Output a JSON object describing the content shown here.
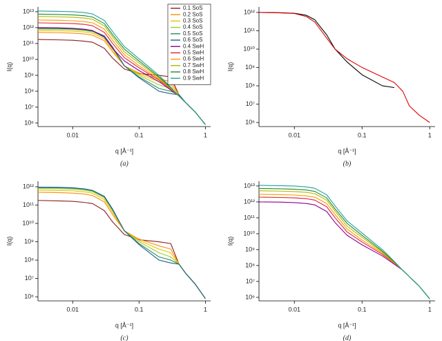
{
  "chart_data": [
    {
      "type": "line",
      "caption": "(a)",
      "xlabel": "q [Å⁻¹]",
      "ylabel": "I(q)",
      "xscale": "log",
      "yscale": "log",
      "xlim": [
        0.003,
        1.2
      ],
      "ylim": [
        600000,
        20000000000000
      ],
      "legend": "upper right",
      "xticks": [
        0.01,
        0.1,
        1
      ],
      "yticks": [
        {
          "value": 1000000,
          "label": "10⁶"
        },
        {
          "value": 10000000,
          "label": "10⁷"
        },
        {
          "value": 100000000,
          "label": "10⁸"
        },
        {
          "value": 1000000000,
          "label": "10⁹"
        },
        {
          "value": 10000000000,
          "label": "10¹⁰"
        },
        {
          "value": 100000000000,
          "label": "10¹¹"
        },
        {
          "value": 1000000000000,
          "label": "10¹²"
        },
        {
          "value": 10000000000000,
          "label": "10¹³"
        }
      ],
      "x": [
        0.003,
        0.006,
        0.01,
        0.015,
        0.02,
        0.03,
        0.04,
        0.06,
        0.1,
        0.2,
        0.3,
        0.4,
        0.5,
        0.7,
        1.0
      ],
      "series": [
        {
          "name": "0.1 SoS",
          "color": "#8b1a1a",
          "values": [
            180000000000.0,
            170000000000.0,
            160000000000.0,
            140000000000.0,
            120000000000.0,
            50000000000.0,
            12000000000.0,
            2500000000.0,
            1300000000.0,
            1000000000.0,
            800000000.0,
            60000000.0,
            20000000.0,
            5000000.0,
            800000.0
          ]
        },
        {
          "name": "0.2 SoS",
          "color": "#ff8c00",
          "values": [
            500000000000.0,
            480000000000.0,
            450000000000.0,
            400000000000.0,
            330000000000.0,
            150000000000.0,
            30000000000.0,
            4000000000.0,
            1400000000.0,
            600000000.0,
            400000000.0,
            60000000.0,
            20000000.0,
            5000000.0,
            800000.0
          ]
        },
        {
          "name": "0.3 SoS",
          "color": "#e6c200",
          "values": [
            650000000000.0,
            630000000000.0,
            600000000000.0,
            530000000000.0,
            440000000000.0,
            200000000000.0,
            40000000000.0,
            4000000000.0,
            1200000000.0,
            400000000.0,
            250000000.0,
            60000000.0,
            20000000.0,
            5000000.0,
            800000.0
          ]
        },
        {
          "name": "0.4 SoS",
          "color": "#9acd32",
          "values": [
            800000000000.0,
            780000000000.0,
            740000000000.0,
            650000000000.0,
            540000000000.0,
            250000000000.0,
            50000000000.0,
            4000000000.0,
            1000000000.0,
            250000000.0,
            150000000.0,
            60000000.0,
            20000000.0,
            5000000.0,
            800000.0
          ]
        },
        {
          "name": "0.5 SoS",
          "color": "#2e8b57",
          "values": [
            900000000000.0,
            880000000000.0,
            830000000000.0,
            730000000000.0,
            600000000000.0,
            280000000000.0,
            55000000000.0,
            4000000000.0,
            800000000.0,
            150000000.0,
            100000000.0,
            60000000.0,
            20000000.0,
            5000000.0,
            800000.0
          ]
        },
        {
          "name": "0.6 SoS",
          "color": "#1f5f8b",
          "values": [
            950000000000.0,
            930000000000.0,
            880000000000.0,
            770000000000.0,
            630000000000.0,
            300000000000.0,
            60000000000.0,
            4000000000.0,
            700000000.0,
            100000000.0,
            70000000.0,
            60000000.0,
            20000000.0,
            5000000.0,
            800000.0
          ]
        },
        {
          "name": "0.4 SwH",
          "color": "#8b008b",
          "values": [
            1000000000000.0,
            970000000000.0,
            900000000000.0,
            800000000000.0,
            650000000000.0,
            250000000000.0,
            50000000000.0,
            8000000000.0,
            2000000000.0,
            400000000.0,
            120000000.0,
            50000000.0,
            20000000.0,
            5000000.0,
            800000.0
          ]
        },
        {
          "name": "0.5 SwH",
          "color": "#e0202a",
          "values": [
            2000000000000.0,
            1900000000000.0,
            1800000000000.0,
            1600000000000.0,
            1300000000000.0,
            500000000000.0,
            100000000000.0,
            13000000000.0,
            3000000000.0,
            500000000.0,
            140000000.0,
            50000000.0,
            20000000.0,
            5000000.0,
            800000.0
          ]
        },
        {
          "name": "0.6 SwH",
          "color": "#ff9900",
          "values": [
            3000000000000.0,
            2900000000000.0,
            2700000000000.0,
            2400000000000.0,
            2000000000000.0,
            800000000000.0,
            160000000000.0,
            20000000000.0,
            4000000000.0,
            600000000.0,
            150000000.0,
            50000000.0,
            20000000.0,
            5000000.0,
            800000.0
          ]
        },
        {
          "name": "0.7 SwH",
          "color": "#b5b500",
          "values": [
            5000000000000.0,
            4800000000000.0,
            4500000000000.0,
            4000000000000.0,
            3300000000000.0,
            1300000000000.0,
            260000000000.0,
            30000000000.0,
            6000000000.0,
            700000000.0,
            160000000.0,
            50000000.0,
            20000000.0,
            5000000.0,
            800000.0
          ]
        },
        {
          "name": "0.8 SwH",
          "color": "#228b22",
          "values": [
            7000000000000.0,
            6700000000000.0,
            6300000000000.0,
            5600000000000.0,
            4600000000000.0,
            1800000000000.0,
            360000000000.0,
            45000000000.0,
            8000000000.0,
            800000000.0,
            170000000.0,
            50000000.0,
            20000000.0,
            5000000.0,
            800000.0
          ]
        },
        {
          "name": "0.9 SwH",
          "color": "#20a0a0",
          "values": [
            11000000000000.0,
            10500000000000.0,
            10000000000000.0,
            8800000000000.0,
            7200000000000.0,
            2800000000000.0,
            560000000000.0,
            65000000000.0,
            11000000000.0,
            1000000000.0,
            180000000.0,
            50000000.0,
            20000000.0,
            5000000.0,
            800000.0
          ]
        }
      ]
    },
    {
      "type": "line",
      "caption": "(b)",
      "xlabel": "q [Å⁻¹]",
      "ylabel": "I(q)",
      "xscale": "log",
      "yscale": "log",
      "xlim": [
        0.003,
        1.2
      ],
      "ylim": [
        600000,
        2000000000000
      ],
      "xticks": [
        0.01,
        0.1,
        1
      ],
      "yticks": [
        {
          "value": 1000000,
          "label": "10⁶"
        },
        {
          "value": 10000000,
          "label": "10⁷"
        },
        {
          "value": 100000000,
          "label": "10⁸"
        },
        {
          "value": 1000000000,
          "label": "10⁹"
        },
        {
          "value": 10000000000,
          "label": "10¹⁰"
        },
        {
          "value": 100000000000,
          "label": "10¹¹"
        },
        {
          "value": 1000000000000,
          "label": "10¹²"
        }
      ],
      "x": [
        0.003,
        0.006,
        0.01,
        0.015,
        0.02,
        0.03,
        0.04,
        0.06,
        0.1,
        0.2,
        0.3,
        0.4,
        0.5,
        0.7,
        1.0
      ],
      "series": [
        {
          "color": "#000000",
          "values": [
            1000000000000.0,
            970000000000.0,
            900000000000.0,
            700000000000.0,
            400000000000.0,
            60000000000.0,
            10000000000.0,
            2000000000.0,
            400000000.0,
            100000000.0,
            80000000.0,
            null,
            null,
            null,
            null
          ]
        },
        {
          "color": "#e00000",
          "values": [
            1000000000000.0,
            950000000000.0,
            880000000000.0,
            600000000000.0,
            300000000000.0,
            40000000000.0,
            10000000000.0,
            3000000000.0,
            1000000000.0,
            300000000.0,
            150000000.0,
            50000000.0,
            8000000.0,
            2500000.0,
            1000000.0
          ]
        }
      ]
    },
    {
      "type": "line",
      "caption": "(c)",
      "xlabel": "q [Å⁻¹]",
      "ylabel": "I(q)",
      "xscale": "log",
      "yscale": "log",
      "xlim": [
        0.003,
        1.2
      ],
      "ylim": [
        600000,
        2000000000000
      ],
      "xticks": [
        0.01,
        0.1,
        1
      ],
      "yticks": [
        {
          "value": 1000000,
          "label": "10⁶"
        },
        {
          "value": 10000000,
          "label": "10⁷"
        },
        {
          "value": 100000000,
          "label": "10⁸"
        },
        {
          "value": 1000000000,
          "label": "10⁹"
        },
        {
          "value": 10000000000,
          "label": "10¹⁰"
        },
        {
          "value": 100000000000,
          "label": "10¹¹"
        },
        {
          "value": 1000000000000,
          "label": "10¹²"
        }
      ],
      "x": [
        0.003,
        0.006,
        0.01,
        0.015,
        0.02,
        0.03,
        0.04,
        0.06,
        0.1,
        0.2,
        0.3,
        0.4,
        0.5,
        0.7,
        1.0
      ],
      "series": [
        {
          "color": "#8b1a1a",
          "values": [
            180000000000.0,
            170000000000.0,
            160000000000.0,
            140000000000.0,
            120000000000.0,
            50000000000.0,
            12000000000.0,
            2500000000.0,
            1300000000.0,
            1000000000.0,
            800000000.0,
            60000000.0,
            20000000.0,
            5000000.0,
            800000.0
          ]
        },
        {
          "color": "#ff8c00",
          "values": [
            500000000000.0,
            480000000000.0,
            450000000000.0,
            400000000000.0,
            330000000000.0,
            150000000000.0,
            30000000000.0,
            4000000000.0,
            1400000000.0,
            600000000.0,
            400000000.0,
            60000000.0,
            20000000.0,
            5000000.0,
            800000.0
          ]
        },
        {
          "color": "#e6c200",
          "values": [
            650000000000.0,
            630000000000.0,
            600000000000.0,
            530000000000.0,
            440000000000.0,
            200000000000.0,
            40000000000.0,
            4000000000.0,
            1200000000.0,
            400000000.0,
            250000000.0,
            60000000.0,
            20000000.0,
            5000000.0,
            800000.0
          ]
        },
        {
          "color": "#9acd32",
          "values": [
            800000000000.0,
            780000000000.0,
            740000000000.0,
            650000000000.0,
            540000000000.0,
            250000000000.0,
            50000000000.0,
            4000000000.0,
            1000000000.0,
            250000000.0,
            150000000.0,
            60000000.0,
            20000000.0,
            5000000.0,
            800000.0
          ]
        },
        {
          "color": "#2e8b57",
          "values": [
            900000000000.0,
            880000000000.0,
            830000000000.0,
            730000000000.0,
            600000000000.0,
            280000000000.0,
            55000000000.0,
            4000000000.0,
            800000000.0,
            150000000.0,
            100000000.0,
            60000000.0,
            20000000.0,
            5000000.0,
            800000.0
          ]
        },
        {
          "color": "#1f5f8b",
          "values": [
            950000000000.0,
            930000000000.0,
            880000000000.0,
            770000000000.0,
            630000000000.0,
            300000000000.0,
            60000000000.0,
            4000000000.0,
            700000000.0,
            100000000.0,
            70000000.0,
            60000000.0,
            20000000.0,
            5000000.0,
            800000.0
          ]
        }
      ]
    },
    {
      "type": "line",
      "caption": "(d)",
      "xlabel": "q [Å⁻¹]",
      "ylabel": "I(q)",
      "xscale": "log",
      "yscale": "log",
      "xlim": [
        0.003,
        1.2
      ],
      "ylim": [
        600000,
        20000000000000
      ],
      "xticks": [
        0.01,
        0.1,
        1
      ],
      "yticks": [
        {
          "value": 1000000,
          "label": "10⁶"
        },
        {
          "value": 10000000,
          "label": "10⁷"
        },
        {
          "value": 100000000,
          "label": "10⁸"
        },
        {
          "value": 1000000000,
          "label": "10⁹"
        },
        {
          "value": 10000000000,
          "label": "10¹⁰"
        },
        {
          "value": 100000000000,
          "label": "10¹¹"
        },
        {
          "value": 1000000000000,
          "label": "10¹²"
        },
        {
          "value": 10000000000000,
          "label": "10¹³"
        }
      ],
      "x": [
        0.003,
        0.006,
        0.01,
        0.015,
        0.02,
        0.03,
        0.04,
        0.06,
        0.1,
        0.2,
        0.3,
        0.4,
        0.5,
        0.7,
        1.0
      ],
      "series": [
        {
          "color": "#8b008b",
          "values": [
            1000000000000.0,
            970000000000.0,
            900000000000.0,
            800000000000.0,
            650000000000.0,
            250000000000.0,
            50000000000.0,
            8000000000.0,
            2000000000.0,
            400000000.0,
            120000000.0,
            50000000.0,
            20000000.0,
            5000000.0,
            800000.0
          ]
        },
        {
          "color": "#e0202a",
          "values": [
            2000000000000.0,
            1900000000000.0,
            1800000000000.0,
            1600000000000.0,
            1300000000000.0,
            500000000000.0,
            100000000000.0,
            13000000000.0,
            3000000000.0,
            500000000.0,
            140000000.0,
            50000000.0,
            20000000.0,
            5000000.0,
            800000.0
          ]
        },
        {
          "color": "#ff9900",
          "values": [
            3000000000000.0,
            2900000000000.0,
            2700000000000.0,
            2400000000000.0,
            2000000000000.0,
            800000000000.0,
            160000000000.0,
            20000000000.0,
            4000000000.0,
            600000000.0,
            150000000.0,
            50000000.0,
            20000000.0,
            5000000.0,
            800000.0
          ]
        },
        {
          "color": "#b5b500",
          "values": [
            5000000000000.0,
            4800000000000.0,
            4500000000000.0,
            4000000000000.0,
            3300000000000.0,
            1300000000000.0,
            260000000000.0,
            30000000000.0,
            6000000000.0,
            700000000.0,
            160000000.0,
            50000000.0,
            20000000.0,
            5000000.0,
            800000.0
          ]
        },
        {
          "color": "#228b22",
          "values": [
            7000000000000.0,
            6700000000000.0,
            6300000000000.0,
            5600000000000.0,
            4600000000000.0,
            1800000000000.0,
            360000000000.0,
            45000000000.0,
            8000000000.0,
            800000000.0,
            170000000.0,
            50000000.0,
            20000000.0,
            5000000.0,
            800000.0
          ]
        },
        {
          "color": "#20a0a0",
          "values": [
            11000000000000.0,
            10500000000000.0,
            10000000000000.0,
            8800000000000.0,
            7200000000000.0,
            2800000000000.0,
            560000000000.0,
            65000000000.0,
            11000000000.0,
            1000000000.0,
            180000000.0,
            50000000.0,
            20000000.0,
            5000000.0,
            800000.0
          ]
        }
      ]
    }
  ]
}
